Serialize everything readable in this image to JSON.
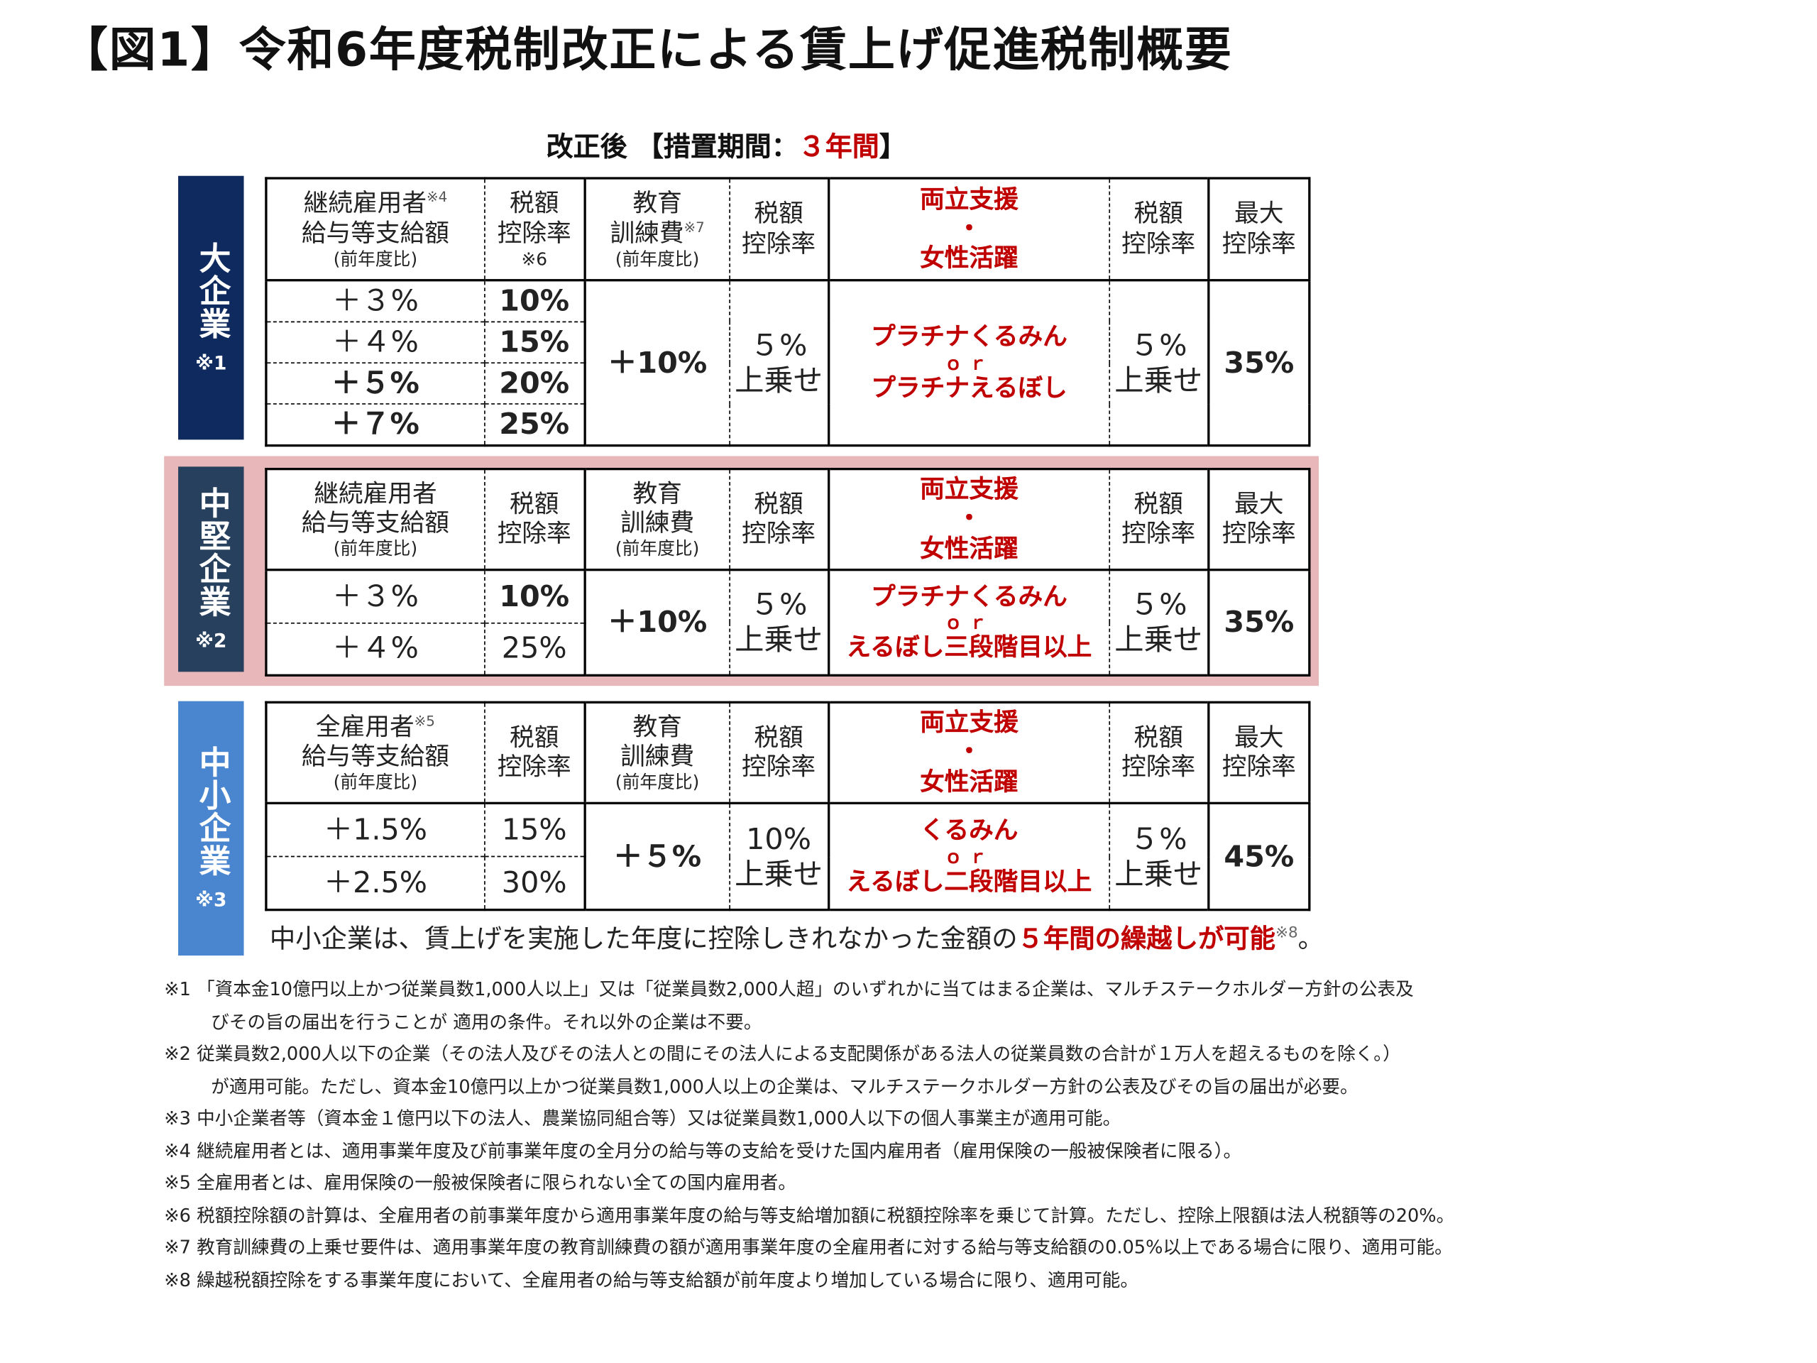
{
  "title": "【図1】令和6年度税制改正による賃上げ促進税制概要",
  "subtitle": {
    "prefix": "改正後 【措置期間：",
    "highlight": "３年間",
    "suffix": "】"
  },
  "colors": {
    "large": "#0e2a5e",
    "mid": "#27405e",
    "small": "#4a86d0",
    "red": "#c00000",
    "pink": "#e8b7b9"
  },
  "sections": [
    {
      "label": "大企業",
      "note": "※1",
      "header": {
        "c0": {
          "l1": "継続雇用者",
          "sup1": "※4",
          "l2": "給与等支給額",
          "small": "(前年度比)"
        },
        "c1": {
          "l1": "税額",
          "l2": "控除率",
          "small": "※6"
        },
        "c2": {
          "l1": "教育",
          "l2": "訓練費",
          "sup2": "※7",
          "small": "(前年度比)"
        },
        "c3": {
          "l1": "税額",
          "l2": "控除率"
        },
        "c4": {
          "l1": "両立支援",
          "dot": "・",
          "l2": "女性活躍"
        },
        "c5": {
          "l1": "税額",
          "l2": "控除率"
        },
        "c6": {
          "l1": "最大",
          "l2": "控除率"
        }
      },
      "rows": [
        {
          "increase": "＋３%",
          "increase_red": false,
          "rate": "10%",
          "rate_red": true
        },
        {
          "increase": "＋４%",
          "increase_red": false,
          "rate": "15%",
          "rate_red": true
        },
        {
          "increase": "＋５%",
          "increase_red": true,
          "rate": "20%",
          "rate_red": true
        },
        {
          "increase": "＋７%",
          "increase_red": true,
          "rate": "25%",
          "rate_red": true
        }
      ],
      "training": "＋10%",
      "training_add": {
        "l1": "５%",
        "l2": "上乗せ"
      },
      "cert": {
        "l1": "プラチナくるみん",
        "or": "ｏｒ",
        "l2": "プラチナえるぼし"
      },
      "cert_add": {
        "l1": "５%",
        "l2": "上乗せ"
      },
      "max": "35%"
    },
    {
      "label": "中堅企業",
      "note": "※2",
      "header": {
        "c0": {
          "l1": "継続雇用者",
          "l2": "給与等支給額",
          "small": "(前年度比)"
        },
        "c1": {
          "l1": "税額",
          "l2": "控除率"
        },
        "c2": {
          "l1": "教育",
          "l2": "訓練費",
          "small": "(前年度比)"
        },
        "c3": {
          "l1": "税額",
          "l2": "控除率"
        },
        "c4": {
          "l1": "両立支援",
          "dot": "・",
          "l2": "女性活躍"
        },
        "c5": {
          "l1": "税額",
          "l2": "控除率"
        },
        "c6": {
          "l1": "最大",
          "l2": "控除率"
        }
      },
      "rows": [
        {
          "increase": "＋３%",
          "increase_red": false,
          "rate": "10%",
          "rate_red": true
        },
        {
          "increase": "＋４%",
          "increase_red": false,
          "rate": "25%",
          "rate_red": false
        }
      ],
      "training": "＋10%",
      "training_add": {
        "l1": "５%",
        "l2": "上乗せ"
      },
      "cert": {
        "l1": "プラチナくるみん",
        "or": "ｏｒ",
        "l2": "えるぼし三段階目以上"
      },
      "cert_add": {
        "l1": "５%",
        "l2": "上乗せ"
      },
      "max": "35%"
    },
    {
      "label": "中小企業",
      "note": "※3",
      "header": {
        "c0": {
          "l1": "全雇用者",
          "sup1": "※5",
          "l2": "給与等支給額",
          "small": "(前年度比)"
        },
        "c1": {
          "l1": "税額",
          "l2": "控除率"
        },
        "c2": {
          "l1": "教育",
          "l2": "訓練費",
          "small": "(前年度比)"
        },
        "c3": {
          "l1": "税額",
          "l2": "控除率"
        },
        "c4": {
          "l1": "両立支援",
          "dot": "・",
          "l2": "女性活躍"
        },
        "c5": {
          "l1": "税額",
          "l2": "控除率"
        },
        "c6": {
          "l1": "最大",
          "l2": "控除率"
        }
      },
      "rows": [
        {
          "increase": "＋1.5%",
          "increase_red": false,
          "rate": "15%",
          "rate_red": false
        },
        {
          "increase": "＋2.5%",
          "increase_red": false,
          "rate": "30%",
          "rate_red": false
        }
      ],
      "training": "＋５%",
      "training_add": {
        "l1": "10%",
        "l2": "上乗せ"
      },
      "cert": {
        "l1": "くるみん",
        "or": "ｏｒ",
        "l2": "えるぼし二段階目以上"
      },
      "cert_add": {
        "l1": "５%",
        "l2": "上乗せ"
      },
      "max": "45%"
    }
  ],
  "sme_note": {
    "prefix": "中小企業は、賃上げを実施した年度に控除しきれなかった金額の",
    "highlight": "５年間の繰越しが可能",
    "sup": "※8",
    "suffix": "。"
  },
  "footnotes": [
    {
      "text": "※1 「資本金10億円以上かつ従業員数1,000人以上」又は「従業員数2,000人超」のいずれかに当てはまる企業は、マルチステークホルダー方針の公表及",
      "cont": false
    },
    {
      "text": "びその旨の届出を行うことが 適用の条件。それ以外の企業は不要。",
      "cont": true
    },
    {
      "text": "※2 従業員数2,000人以下の企業（その法人及びその法人との間にその法人による支配関係がある法人の従業員数の合計が１万人を超えるものを除く。）",
      "cont": false
    },
    {
      "text": "が適用可能。ただし、資本金10億円以上かつ従業員数1,000人以上の企業は、マルチステークホルダー方針の公表及びその旨の届出が必要。",
      "cont": true
    },
    {
      "text": "※3 中小企業者等（資本金１億円以下の法人、農業協同組合等）又は従業員数1,000人以下の個人事業主が適用可能。",
      "cont": false
    },
    {
      "text": "※4 継続雇用者とは、適用事業年度及び前事業年度の全月分の給与等の支給を受けた国内雇用者（雇用保険の一般被保険者に限る）。",
      "cont": false
    },
    {
      "text": "※5 全雇用者とは、雇用保険の一般被保険者に限られない全ての国内雇用者。",
      "cont": false
    },
    {
      "text": "※6 税額控除額の計算は、全雇用者の前事業年度から適用事業年度の給与等支給増加額に税額控除率を乗じて計算。ただし、控除上限額は法人税額等の20%。",
      "cont": false
    },
    {
      "text": "※7 教育訓練費の上乗せ要件は、適用事業年度の教育訓練費の額が適用事業年度の全雇用者に対する給与等支給額の0.05%以上である場合に限り、適用可能。",
      "cont": false
    },
    {
      "text": "※8 繰越税額控除をする事業年度において、全雇用者の給与等支給額が前年度より増加している場合に限り、適用可能。",
      "cont": false
    }
  ]
}
